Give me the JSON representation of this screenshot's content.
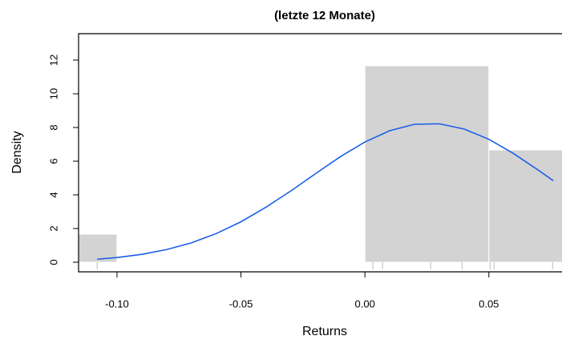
{
  "chart_data": {
    "type": "histogram",
    "title": "(letzte 12 Monate)",
    "x_label": "Returns",
    "y_label": "Density",
    "bins": [
      -0.15,
      -0.1,
      -0.05,
      0.0,
      0.05,
      0.1
    ],
    "values": [
      1.667,
      0,
      0,
      11.667,
      6.667
    ],
    "color": "#d3d3d3",
    "density": {
      "color": "#1a5fe8",
      "x": [
        -0.108,
        -0.1,
        -0.09,
        -0.08,
        -0.07,
        -0.06,
        -0.05,
        -0.04,
        -0.03,
        -0.02,
        -0.01,
        0.0,
        0.01,
        0.02,
        0.03,
        0.04,
        0.05,
        0.06,
        0.07,
        0.076
      ],
      "values": [
        0.18,
        0.28,
        0.47,
        0.75,
        1.15,
        1.7,
        2.4,
        3.26,
        4.22,
        5.25,
        6.26,
        7.14,
        7.81,
        8.19,
        8.22,
        7.91,
        7.3,
        6.45,
        5.46,
        4.84
      ]
    },
    "rug": [
      -0.108,
      0.0032,
      0.0071,
      0.0265,
      0.0392,
      0.0505,
      0.0521,
      0.0757
    ],
    "xlim": [
      -0.1155,
      0.0795
    ],
    "ylim": [
      -0.57,
      13.57
    ],
    "xticks": [
      {
        "value": -0.1,
        "label": "-0.10"
      },
      -0.05,
      {
        "value": 0.0,
        "label": "0.00"
      },
      0.05
    ],
    "yticks": [
      0,
      2,
      4,
      6,
      8,
      10,
      12
    ]
  }
}
